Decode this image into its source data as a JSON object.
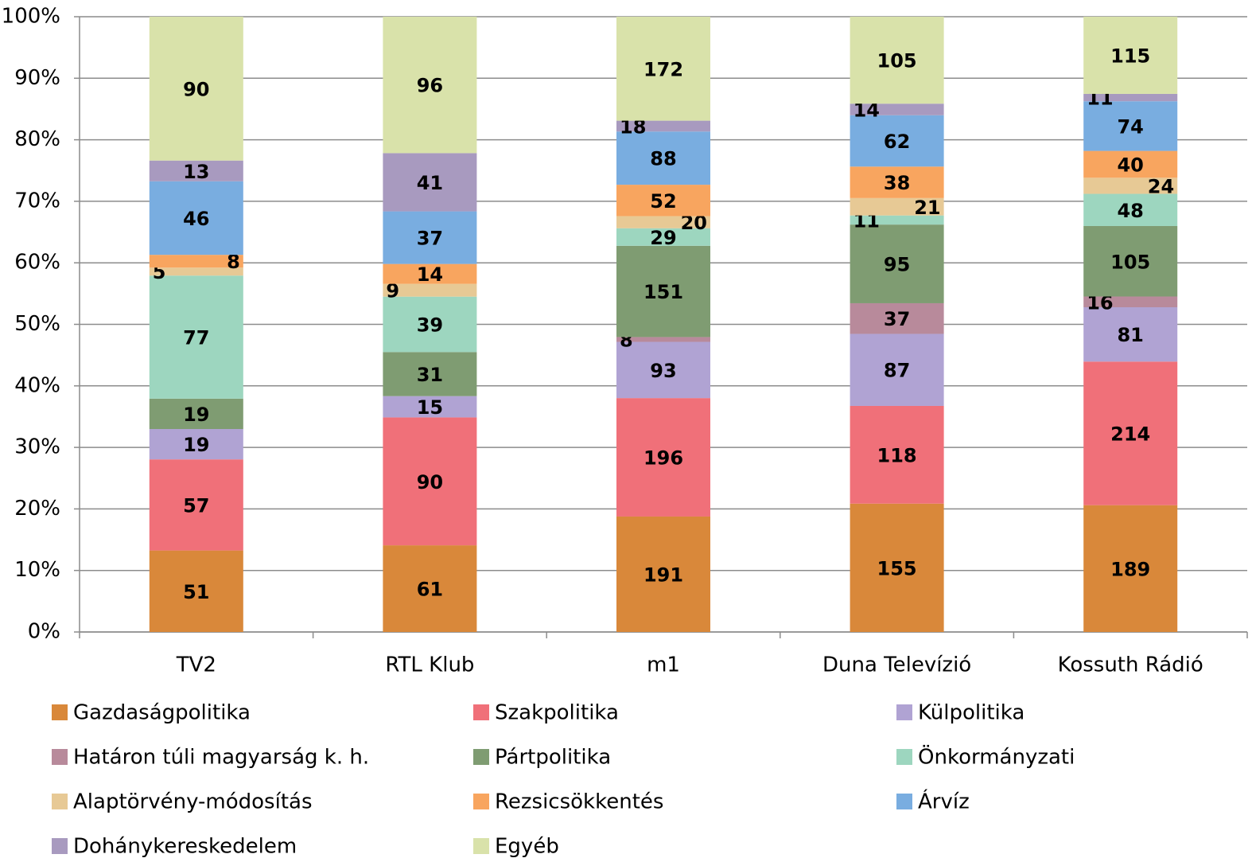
{
  "chart_data": {
    "type": "stacked_percent_bar",
    "categories": [
      "TV2",
      "RTL Klub",
      "m1",
      "Duna Televízió",
      "Kossuth Rádió"
    ],
    "series": [
      {
        "name": "Gazdaságpolitika",
        "color": "#d9883a",
        "values": [
          51,
          61,
          191,
          155,
          189
        ]
      },
      {
        "name": "Szakpolitika",
        "color": "#f07079",
        "values": [
          57,
          90,
          196,
          118,
          214
        ]
      },
      {
        "name": "Külpolitika",
        "color": "#b0a3d3",
        "values": [
          19,
          15,
          93,
          87,
          81
        ]
      },
      {
        "name": "Határon túli magyarság k. h.",
        "color": "#b88a9b",
        "values": [
          null,
          null,
          8,
          37,
          16
        ]
      },
      {
        "name": "Pártpolitika",
        "color": "#7f9c72",
        "values": [
          19,
          31,
          151,
          95,
          105
        ]
      },
      {
        "name": "Önkormányzati",
        "color": "#9dd6bf",
        "values": [
          77,
          39,
          29,
          11,
          48
        ]
      },
      {
        "name": "Alaptörvény-módosítás",
        "color": "#e7c995",
        "values": [
          5,
          9,
          20,
          21,
          24
        ]
      },
      {
        "name": "Rezsicsökkentés",
        "color": "#f8a55f",
        "values": [
          8,
          14,
          52,
          38,
          40
        ]
      },
      {
        "name": "Árvíz",
        "color": "#79ade0",
        "values": [
          46,
          37,
          88,
          62,
          74
        ]
      },
      {
        "name": "Dohánykereskedelem",
        "color": "#a89abf",
        "values": [
          13,
          41,
          18,
          14,
          11
        ]
      },
      {
        "name": "Egyéb",
        "color": "#d9e2aa",
        "values": [
          90,
          96,
          172,
          105,
          115
        ]
      }
    ],
    "ylim": [
      0,
      100
    ],
    "yticks": [
      {
        "value": 0,
        "label": "0%"
      },
      {
        "value": 10,
        "label": "10%"
      },
      {
        "value": 20,
        "label": "20%"
      },
      {
        "value": 30,
        "label": "30%"
      },
      {
        "value": 40,
        "label": "40%"
      },
      {
        "value": 50,
        "label": "50%"
      },
      {
        "value": 60,
        "label": "60%"
      },
      {
        "value": 70,
        "label": "70%"
      },
      {
        "value": 80,
        "label": "80%"
      },
      {
        "value": 90,
        "label": "90%"
      },
      {
        "value": 100,
        "label": "100%"
      }
    ],
    "grid": true,
    "legend": "bottom"
  }
}
